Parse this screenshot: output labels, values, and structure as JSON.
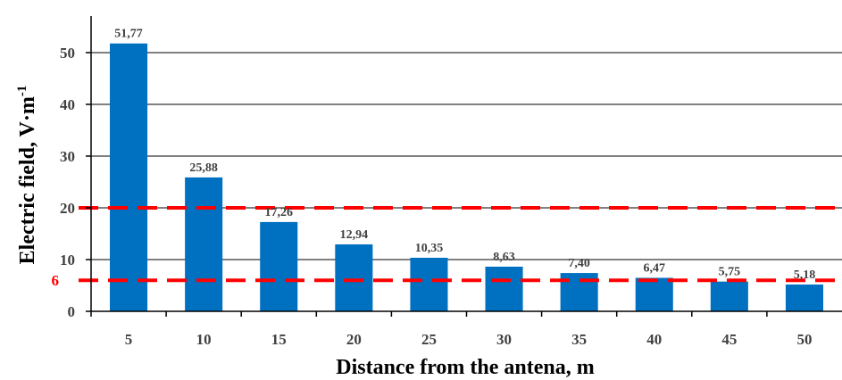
{
  "chart_data": {
    "type": "bar",
    "categories": [
      "5",
      "10",
      "15",
      "20",
      "25",
      "30",
      "35",
      "40",
      "45",
      "50"
    ],
    "values": [
      51.77,
      25.88,
      17.26,
      12.94,
      10.35,
      8.63,
      7.4,
      6.47,
      5.75,
      5.18
    ],
    "data_labels": [
      "51,77",
      "25,88",
      "17,26",
      "12,94",
      "10,35",
      "8,63",
      "7,40",
      "6,47",
      "5,75",
      "5,18"
    ],
    "xlabel": "Distance from the antena, m",
    "ylabel": "Electric field, V·m",
    "ylabel_superscript": "-1",
    "ylim": [
      0,
      55
    ],
    "yticks": [
      "0",
      "10",
      "20",
      "30",
      "40",
      "50"
    ],
    "grid": "horizontal",
    "reference_lines": [
      {
        "value": 20,
        "label": ""
      },
      {
        "value": 6,
        "label": "6"
      }
    ],
    "colors": {
      "bar": "#0070C0",
      "reference": "#FF0000",
      "grid": "#000000",
      "text": "#404040"
    }
  }
}
